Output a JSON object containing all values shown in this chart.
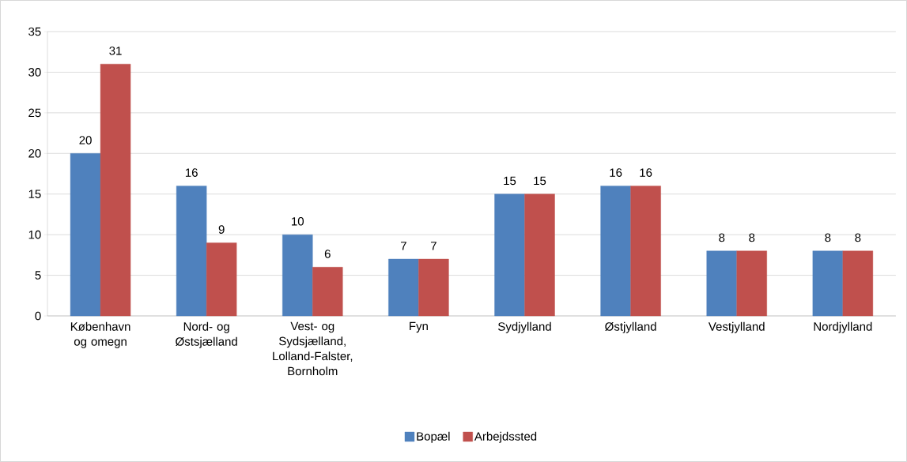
{
  "chart_data": {
    "type": "bar",
    "categories": [
      "København og omegn",
      "Nord- og Østsjælland",
      "Vest- og Sydsjælland, Lolland-Falster, Bornholm",
      "Fyn",
      "Sydjylland",
      "Østjylland",
      "Vestjylland",
      "Nordjylland"
    ],
    "series": [
      {
        "name": "Bopæl",
        "color": "#4f81bd",
        "values": [
          20,
          16,
          10,
          7,
          15,
          16,
          8,
          8
        ]
      },
      {
        "name": "Arbejdssted",
        "color": "#c0504d",
        "values": [
          31,
          9,
          6,
          7,
          15,
          16,
          8,
          8
        ]
      }
    ],
    "ylim": [
      0,
      35
    ],
    "yticks": [
      0,
      5,
      10,
      15,
      20,
      25,
      30,
      35
    ],
    "grid": "y",
    "legend": "bottom",
    "data_labels": true
  }
}
